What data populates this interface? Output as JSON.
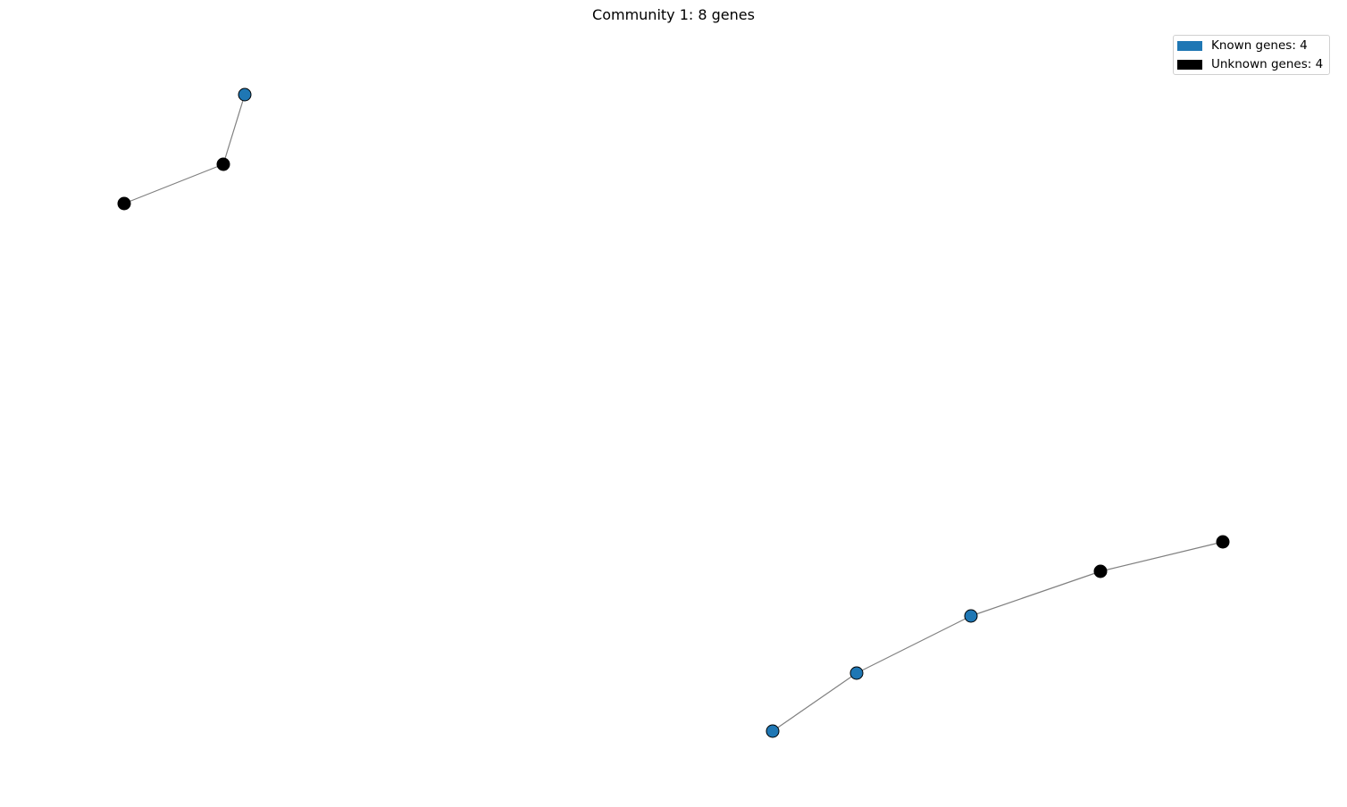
{
  "title": "Community 1: 8 genes",
  "legend": {
    "position": "top-right",
    "known": {
      "label": "Known genes: 4",
      "color": "#1f77b4"
    },
    "unknown": {
      "label": "Unknown genes: 4",
      "color": "#000000"
    }
  },
  "edge_color": "#808080",
  "node_outline_color": "#000000",
  "nodes": [
    {
      "id": "g1",
      "status": "known"
    },
    {
      "id": "g2",
      "status": "unknown"
    },
    {
      "id": "g3",
      "status": "unknown"
    },
    {
      "id": "g4",
      "status": "known"
    },
    {
      "id": "g5",
      "status": "known"
    },
    {
      "id": "g6",
      "status": "known"
    },
    {
      "id": "g7",
      "status": "unknown"
    },
    {
      "id": "g8",
      "status": "unknown"
    }
  ],
  "edges": [
    [
      "g1",
      "g2"
    ],
    [
      "g2",
      "g3"
    ],
    [
      "g4",
      "g5"
    ],
    [
      "g5",
      "g6"
    ],
    [
      "g6",
      "g7"
    ],
    [
      "g7",
      "g8"
    ]
  ]
}
